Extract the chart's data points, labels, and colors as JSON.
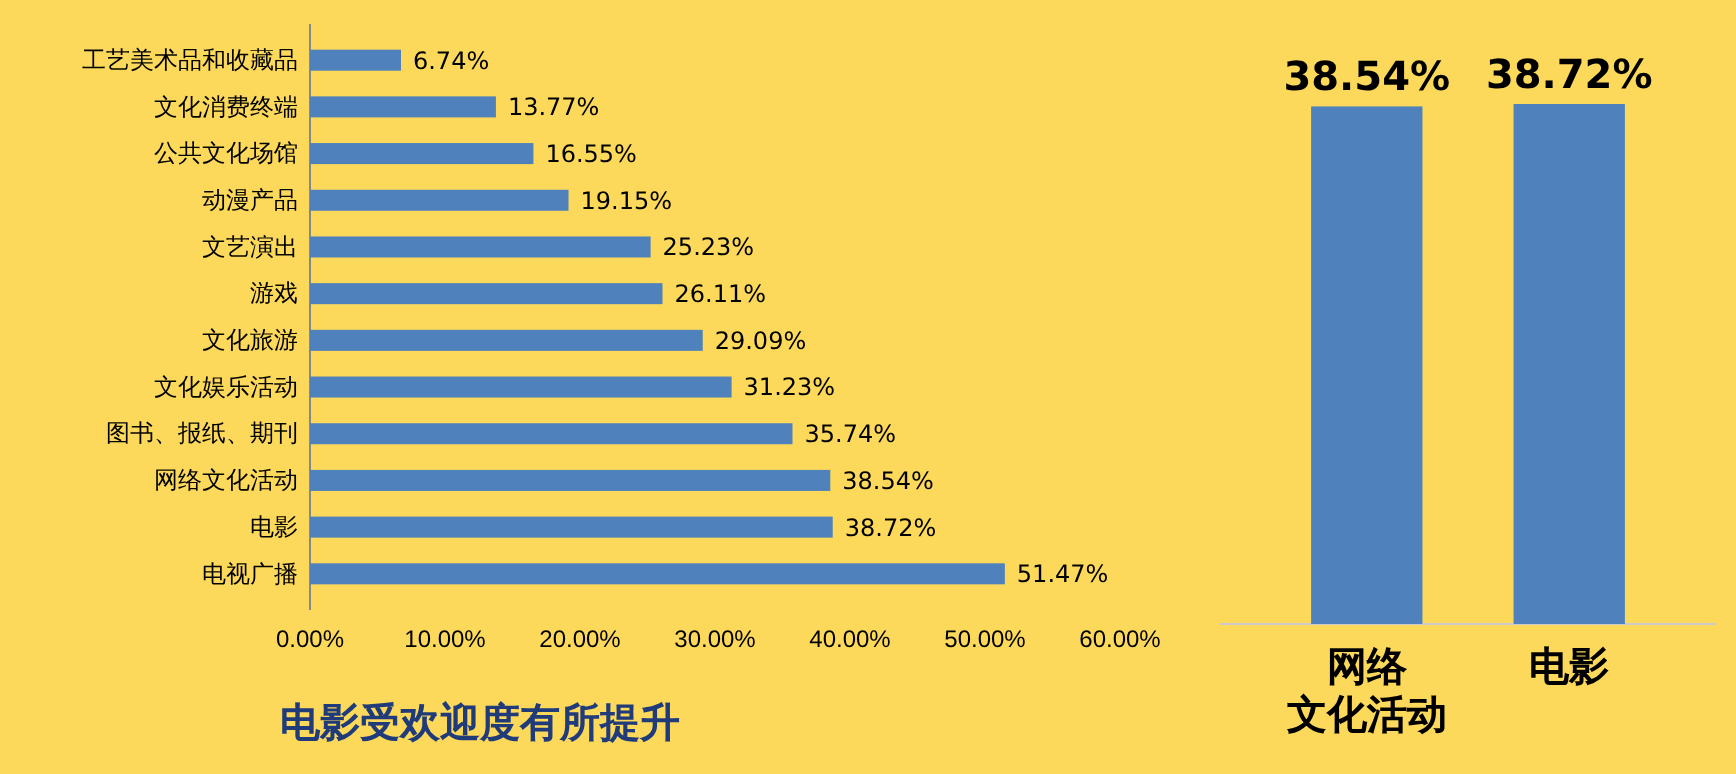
{
  "chart_data": [
    {
      "type": "bar",
      "orientation": "horizontal",
      "title": "电影受欢迎度有所提升",
      "categories": [
        "工艺美术品和收藏品",
        "文化消费终端",
        "公共文化场馆",
        "动漫产品",
        "文艺演出",
        "游戏",
        "文化旅游",
        "文化娱乐活动",
        "图书、报纸、期刊",
        "网络文化活动",
        "电影",
        "电视广播"
      ],
      "values": [
        6.74,
        13.77,
        16.55,
        19.15,
        25.23,
        26.11,
        29.09,
        31.23,
        35.74,
        38.54,
        38.72,
        51.47
      ],
      "value_labels": [
        "6.74%",
        "13.77%",
        "16.55%",
        "19.15%",
        "25.23%",
        "26.11%",
        "29.09%",
        "31.23%",
        "35.74%",
        "38.54%",
        "38.72%",
        "51.47%"
      ],
      "color": "#4f81bd",
      "xlim": [
        0,
        60
      ],
      "xticks": [
        {
          "value": 0,
          "label": "0.00%"
        },
        {
          "value": 10,
          "label": "10.00%"
        },
        {
          "value": 20,
          "label": "20.00%"
        },
        {
          "value": 30,
          "label": "30.00%"
        },
        {
          "value": 40,
          "label": "40.00%"
        },
        {
          "value": 50,
          "label": "50.00%"
        },
        {
          "value": 60,
          "label": "60.00%"
        }
      ],
      "grid": false
    },
    {
      "type": "bar",
      "categories": [
        "网络文化活动",
        "电影"
      ],
      "values": [
        38.54,
        38.72
      ],
      "value_labels": [
        "38.54%",
        "38.72%"
      ],
      "color": "#4f81bd"
    }
  ]
}
